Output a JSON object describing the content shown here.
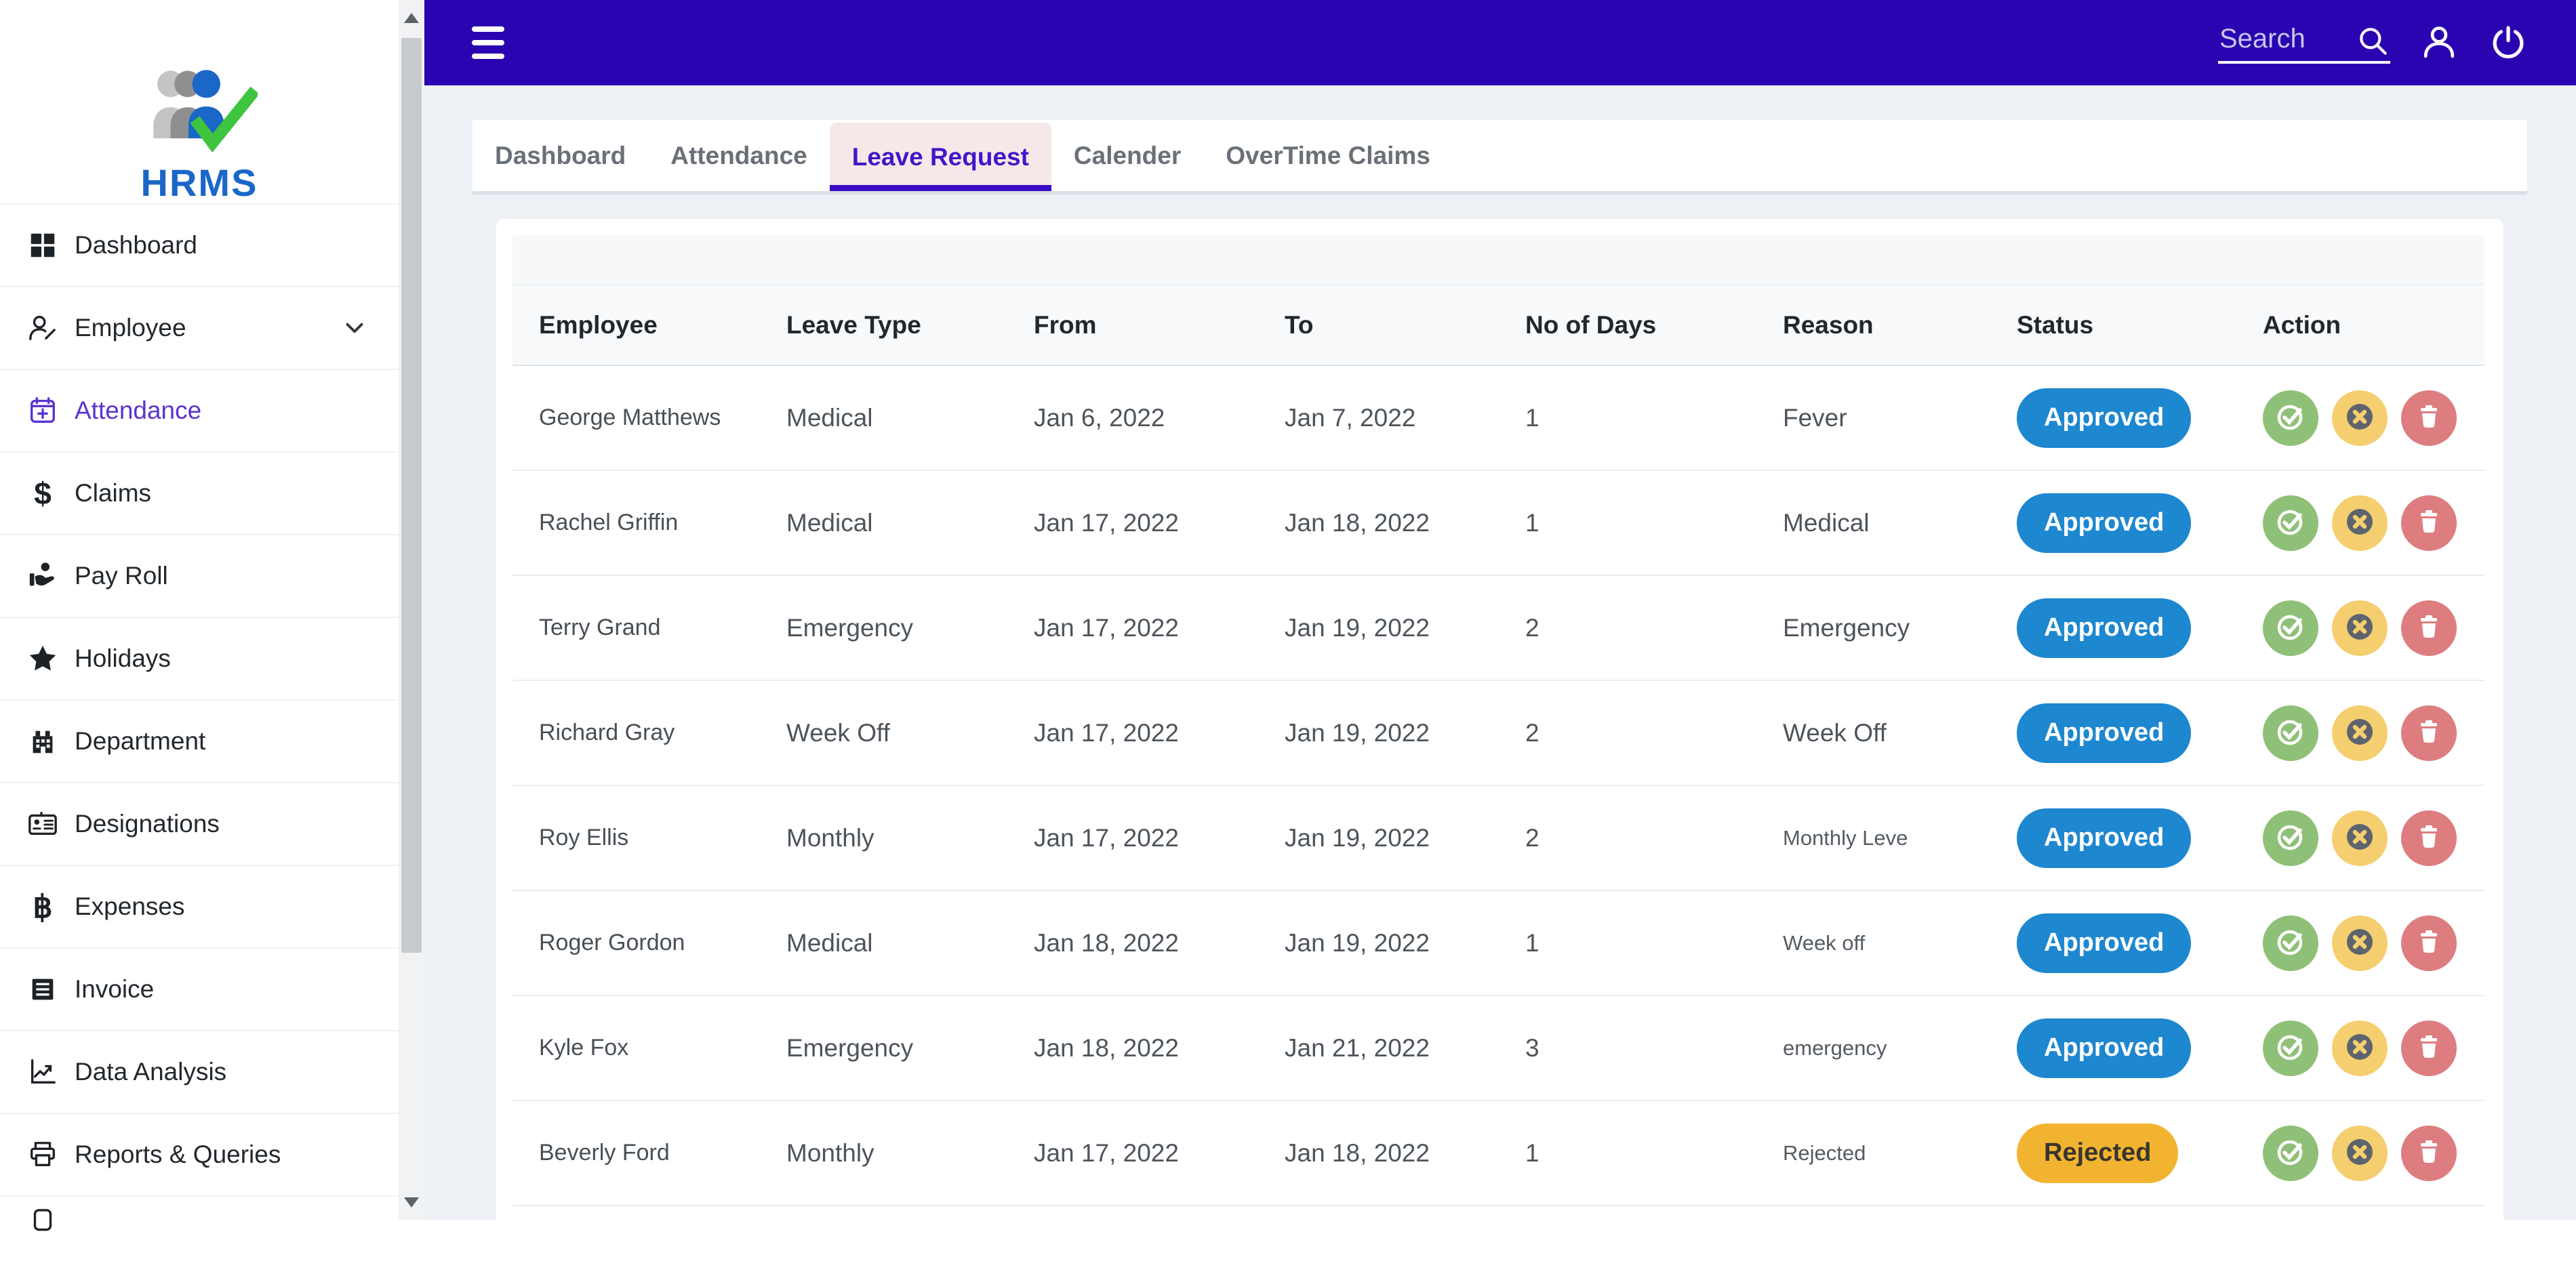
{
  "brand": {
    "name": "HRMS"
  },
  "topbar": {
    "search_placeholder": "Search",
    "menu_icon": "menu-icon",
    "search_icon": "search-icon",
    "user_icon": "user-icon",
    "power_icon": "power-icon"
  },
  "sidebar": {
    "items": [
      {
        "label": "Dashboard",
        "icon": "grid-icon"
      },
      {
        "label": "Employee",
        "icon": "person-edit-icon",
        "chevron": true
      },
      {
        "label": "Attendance",
        "icon": "calendar-plus-icon",
        "active": true
      },
      {
        "label": "Claims",
        "icon": "dollar-icon"
      },
      {
        "label": "Pay Roll",
        "icon": "hand-coins-icon"
      },
      {
        "label": "Holidays",
        "icon": "star-icon"
      },
      {
        "label": "Department",
        "icon": "building-icon"
      },
      {
        "label": "Designations",
        "icon": "id-card-icon"
      },
      {
        "label": "Expenses",
        "icon": "baht-icon"
      },
      {
        "label": "Invoice",
        "icon": "receipt-icon"
      },
      {
        "label": "Data Analysis",
        "icon": "chart-line-icon"
      },
      {
        "label": "Reports & Queries",
        "icon": "printer-icon"
      },
      {
        "label": "",
        "icon": "partial-icon"
      }
    ]
  },
  "tabs": [
    {
      "label": "Dashboard"
    },
    {
      "label": "Attendance"
    },
    {
      "label": "Leave Request",
      "active": true
    },
    {
      "label": "Calender"
    },
    {
      "label": "OverTime Claims"
    }
  ],
  "table": {
    "columns": [
      "Employee",
      "Leave Type",
      "From",
      "To",
      "No of Days",
      "Reason",
      "Status",
      "Action"
    ],
    "actions": {
      "approve_icon": "check-circle-icon",
      "cancel_icon": "x-circle-icon",
      "delete_icon": "trash-icon"
    },
    "rows": [
      {
        "employee": "George Matthews",
        "leave_type": "Medical",
        "from": "Jan 6, 2022",
        "to": "Jan 7, 2022",
        "days": "1",
        "reason": "Fever",
        "status": "Approved"
      },
      {
        "employee": "Rachel Griffin",
        "leave_type": "Medical",
        "from": "Jan 17, 2022",
        "to": "Jan 18, 2022",
        "days": "1",
        "reason": "Medical",
        "status": "Approved"
      },
      {
        "employee": "Terry Grand",
        "leave_type": "Emergency",
        "from": "Jan 17, 2022",
        "to": "Jan 19, 2022",
        "days": "2",
        "reason": "Emergency",
        "status": "Approved"
      },
      {
        "employee": "Richard Gray",
        "leave_type": "Week Off",
        "from": "Jan 17, 2022",
        "to": "Jan 19, 2022",
        "days": "2",
        "reason": "Week Off",
        "status": "Approved"
      },
      {
        "employee": "Roy Ellis",
        "leave_type": "Monthly",
        "from": "Jan 17, 2022",
        "to": "Jan 19, 2022",
        "days": "2",
        "reason": "Monthly Leve",
        "status": "Approved"
      },
      {
        "employee": "Roger Gordon",
        "leave_type": "Medical",
        "from": "Jan 18, 2022",
        "to": "Jan 19, 2022",
        "days": "1",
        "reason": "Week off",
        "status": "Approved"
      },
      {
        "employee": "Kyle Fox",
        "leave_type": "Emergency",
        "from": "Jan 18, 2022",
        "to": "Jan 21, 2022",
        "days": "3",
        "reason": "emergency",
        "status": "Approved"
      },
      {
        "employee": "Beverly Ford",
        "leave_type": "Monthly",
        "from": "Jan 17, 2022",
        "to": "Jan 18, 2022",
        "days": "1",
        "reason": "Rejected",
        "status": "Rejected"
      }
    ]
  },
  "theme": {
    "header-bg": "#2a04b1",
    "page-bg": "#edf0f4",
    "active-item": "#5b33d1",
    "tab-active-text": "#4316c8",
    "tab-active-bg": "#f6e8e8",
    "tab-underline": "#3a0cc4",
    "approved-bg": "#1d87d0",
    "rejected-bg": "#f2b430",
    "approve-btn": "#8fc077",
    "cancel-btn": "#f5ce6f",
    "delete-btn": "#dd7d80",
    "logo-blue": "#1a67c8",
    "logo-green": "#3fc43f"
  }
}
